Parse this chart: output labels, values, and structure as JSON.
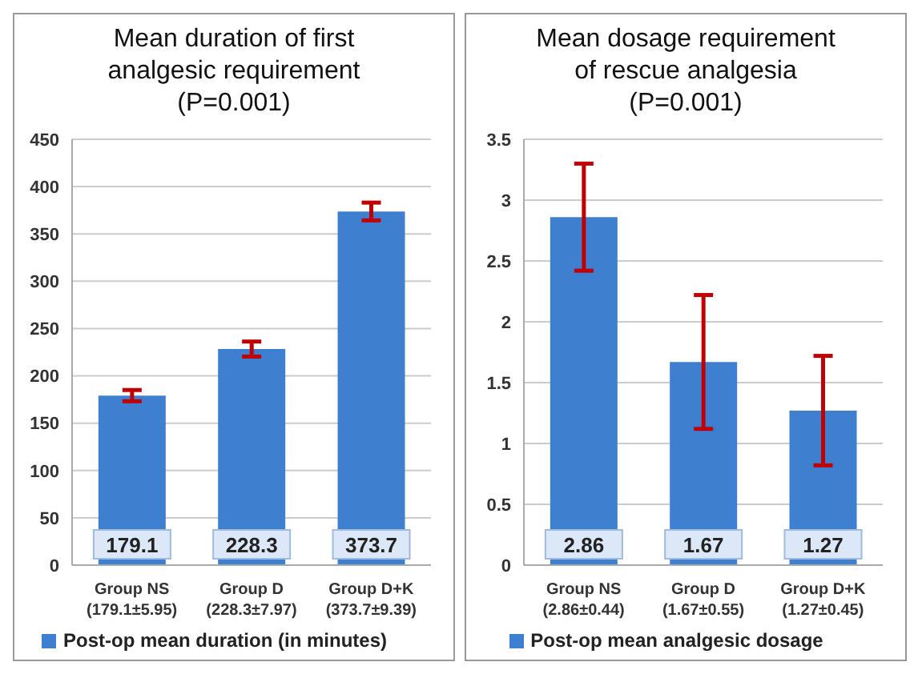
{
  "chart_data": [
    {
      "type": "bar",
      "title": "Mean duration of first\nanalgesic requirement\n(P=0.001)",
      "categories": [
        "Group NS\n(179.1±5.95)",
        "Group D\n(228.3±7.97)",
        "Group D+K\n(373.7±9.39)"
      ],
      "series": [
        {
          "name": "Post-op mean duration (in minutes)",
          "color": "#3f7fd0",
          "values": [
            179.1,
            228.3,
            373.7
          ],
          "errors": [
            5.95,
            7.97,
            9.39
          ]
        }
      ],
      "ylim": [
        0,
        450
      ],
      "yticks": [
        0,
        50,
        100,
        150,
        200,
        250,
        300,
        350,
        400,
        450
      ],
      "grid": "y",
      "legend": "bottom",
      "data_labels": true
    },
    {
      "type": "bar",
      "title": "Mean dosage requirement\nof rescue analgesia\n(P=0.001)",
      "categories": [
        "Group NS\n(2.86±0.44)",
        "Group D\n(1.67±0.55)",
        "Group D+K\n(1.27±0.45)"
      ],
      "series": [
        {
          "name": "Post-op mean analgesic dosage",
          "color": "#3f7fd0",
          "values": [
            2.86,
            1.67,
            1.27
          ],
          "errors": [
            0.44,
            0.55,
            0.45
          ]
        }
      ],
      "ylim": [
        0,
        3.5
      ],
      "yticks": [
        0,
        0.5,
        1,
        1.5,
        2,
        2.5,
        3,
        3.5
      ],
      "grid": "y",
      "legend": "bottom",
      "data_labels": true
    }
  ]
}
